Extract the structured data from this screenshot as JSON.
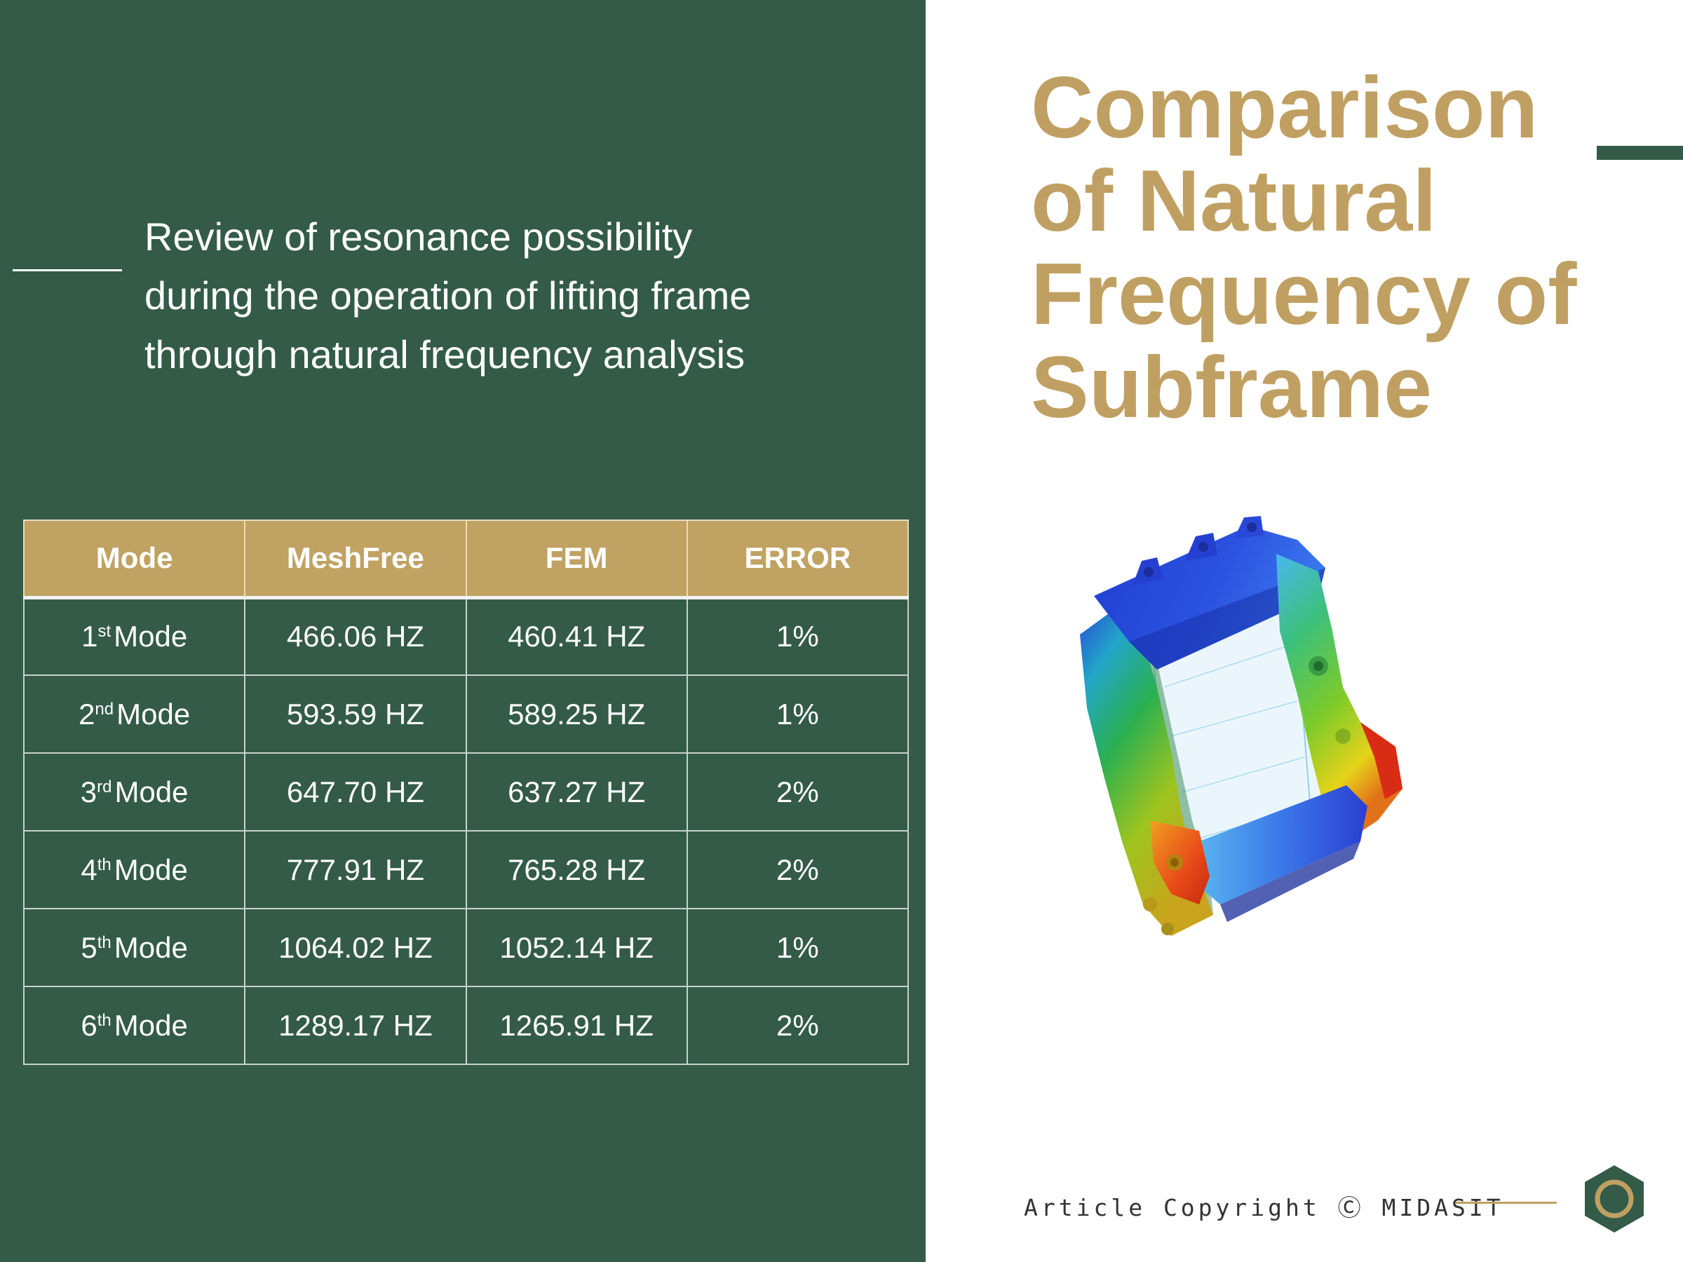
{
  "intro": {
    "lines": [
      "Review of resonance possibility",
      "during the operation of lifting frame",
      "through natural frequency analysis"
    ]
  },
  "title": {
    "lines": [
      "Comparison",
      "of Natural",
      "Frequency of",
      "Subframe"
    ]
  },
  "table": {
    "headers": [
      "Mode",
      "MeshFree",
      "FEM",
      "ERROR"
    ],
    "rows": [
      {
        "num": "1",
        "sup": "st",
        "mode": "Mode",
        "meshfree": "466.06 HZ",
        "fem": "460.41 HZ",
        "error": "1%"
      },
      {
        "num": "2",
        "sup": "nd",
        "mode": "Mode",
        "meshfree": "593.59 HZ",
        "fem": "589.25 HZ",
        "error": "1%"
      },
      {
        "num": "3",
        "sup": "rd",
        "mode": "Mode",
        "meshfree": "647.70 HZ",
        "fem": "637.27 HZ",
        "error": "2%"
      },
      {
        "num": "4",
        "sup": "th",
        "mode": "Mode",
        "meshfree": "777.91 HZ",
        "fem": "765.28 HZ",
        "error": "2%"
      },
      {
        "num": "5",
        "sup": "th",
        "mode": "Mode",
        "meshfree": "1064.02 HZ",
        "fem": "1052.14 HZ",
        "error": "1%"
      },
      {
        "num": "6",
        "sup": "th",
        "mode": "Mode",
        "meshfree": "1289.17 HZ",
        "fem": "1265.91 HZ",
        "error": "2%"
      }
    ]
  },
  "footer": {
    "copyright": "Article Copyright Ⓒ MIDASIT",
    "logo_icon": "hexagon-ring-icon"
  },
  "figure": {
    "icon": "subframe-fem-contour-icon"
  },
  "colors": {
    "panel_green": "#335b48",
    "accent_gold": "#c0a062",
    "header_gold": "#c0a262",
    "text_white": "#ffffff"
  }
}
